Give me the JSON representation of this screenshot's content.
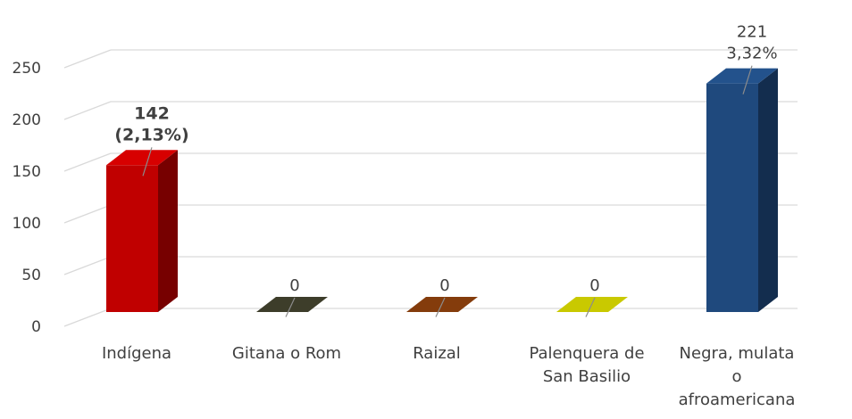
{
  "chart_data": {
    "type": "bar",
    "categories": [
      [
        "Indígena"
      ],
      [
        "Gitana o Rom"
      ],
      [
        "Raizal"
      ],
      [
        "Palenquera de",
        "San Basilio"
      ],
      [
        "Negra, mulata",
        "o",
        "afroamericana"
      ]
    ],
    "values": [
      142,
      0,
      0,
      0,
      221
    ],
    "data_labels": [
      {
        "lines": [
          "142",
          "(2,13%)"
        ],
        "bold": true
      },
      {
        "lines": [
          "0"
        ],
        "bold": false
      },
      {
        "lines": [
          "0"
        ],
        "bold": false
      },
      {
        "lines": [
          "0"
        ],
        "bold": false
      },
      {
        "lines": [
          "221",
          "3,32%"
        ],
        "bold": false
      }
    ],
    "colors": [
      "#c00000",
      "#3d3d2a",
      "#843c0c",
      "#c9c900",
      "#1f497d"
    ],
    "y_ticks": [
      0,
      50,
      100,
      150,
      200,
      250
    ],
    "ylim": [
      0,
      300
    ],
    "grid": true,
    "style": "3d-column",
    "title": "",
    "xlabel": "",
    "ylabel": ""
  }
}
